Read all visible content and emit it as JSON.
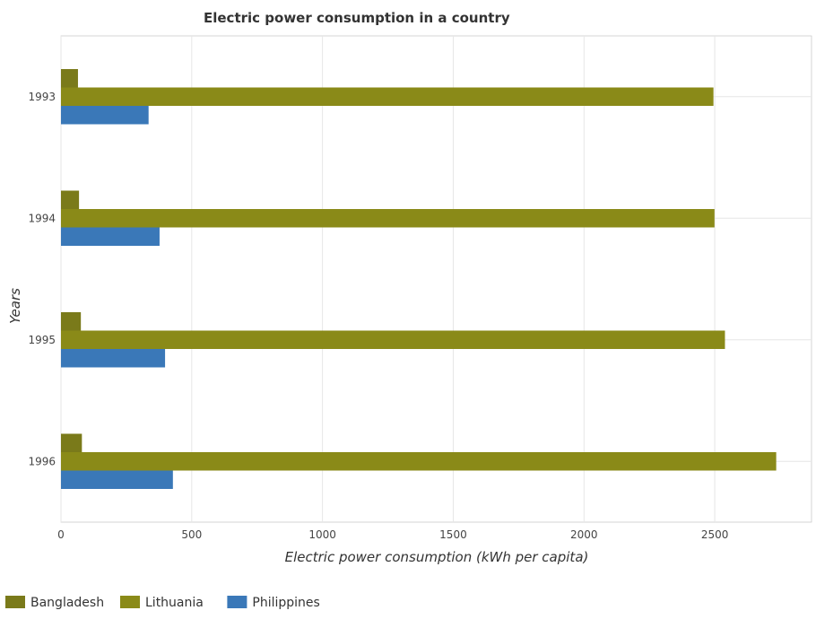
{
  "chart_data": {
    "type": "bar",
    "orientation": "horizontal",
    "title": "Electric power consumption in a country",
    "xlabel": "Electric power consumption (kWh per capita)",
    "ylabel": "Years",
    "categories": [
      "1993",
      "1994",
      "1995",
      "1996"
    ],
    "xlim": [
      0,
      2870
    ],
    "x_ticks": [
      0,
      500,
      1000,
      1500,
      2000,
      2500
    ],
    "x_tick_labels": [
      "0",
      "500",
      "1000",
      "1500",
      "2000",
      "2500"
    ],
    "grid": true,
    "legend_position": "bottom-left",
    "series": [
      {
        "name": "Bangladesh",
        "color": "#7a7a1a",
        "values": [
          65,
          69,
          76,
          80
        ]
      },
      {
        "name": "Lithuania",
        "color": "#8a8a18",
        "values": [
          2495,
          2499,
          2539,
          2735
        ]
      },
      {
        "name": "Philippines",
        "color": "#3a78b8",
        "values": [
          335,
          377,
          398,
          428
        ]
      }
    ]
  }
}
